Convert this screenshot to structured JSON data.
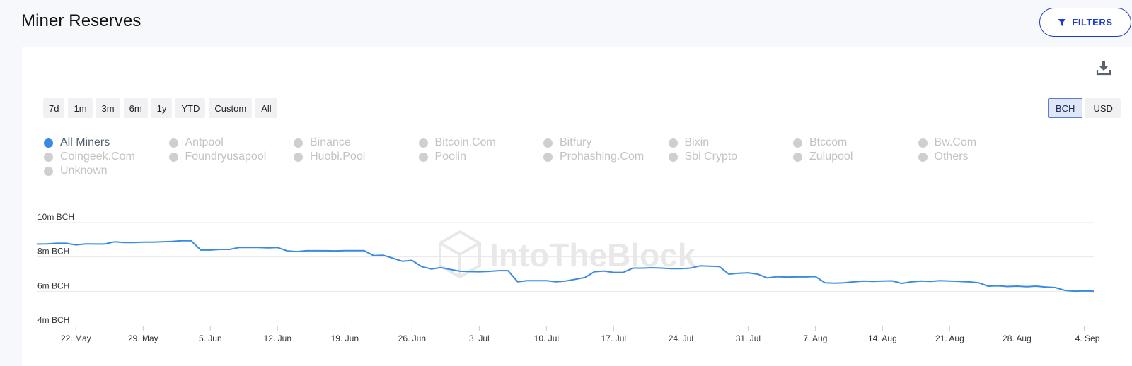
{
  "page": {
    "title": "Miner Reserves"
  },
  "toolbar": {
    "filters_label": "FILTERS"
  },
  "range_buttons": [
    "7d",
    "1m",
    "3m",
    "6m",
    "1y",
    "YTD",
    "Custom",
    "All"
  ],
  "unit_toggle": {
    "options": [
      "BCH",
      "USD"
    ],
    "selected": "BCH"
  },
  "legend": {
    "items": [
      {
        "label": "All Miners",
        "active": true
      },
      {
        "label": "Antpool",
        "active": false
      },
      {
        "label": "Binance",
        "active": false
      },
      {
        "label": "Bitcoin.Com",
        "active": false
      },
      {
        "label": "Bitfury",
        "active": false
      },
      {
        "label": "Bixin",
        "active": false
      },
      {
        "label": "Btccom",
        "active": false
      },
      {
        "label": "Bw.Com",
        "active": false
      },
      {
        "label": "Coingeek.Com",
        "active": false
      },
      {
        "label": "Foundryusapool",
        "active": false
      },
      {
        "label": "Huobi.Pool",
        "active": false
      },
      {
        "label": "Poolin",
        "active": false
      },
      {
        "label": "Prohashing.Com",
        "active": false
      },
      {
        "label": "Sbi Crypto",
        "active": false
      },
      {
        "label": "Zulupool",
        "active": false
      },
      {
        "label": "Others",
        "active": false
      },
      {
        "label": "Unknown",
        "active": false
      }
    ]
  },
  "watermark": "IntoTheBlock",
  "colors": {
    "line": "#3a8be0",
    "accent": "#1f3cc7",
    "inactive_legend": "#cfcfcf"
  },
  "icons": {
    "filter": "filter-icon",
    "download": "download-icon"
  },
  "chart_data": {
    "type": "line",
    "title": "",
    "xlabel": "",
    "ylabel": "",
    "y_unit": "m BCH",
    "ylim": [
      4,
      10
    ],
    "y_ticks": [
      {
        "value": 4,
        "label": "4m BCH"
      },
      {
        "value": 6,
        "label": "6m BCH"
      },
      {
        "value": 8,
        "label": "8m BCH"
      },
      {
        "value": 10,
        "label": "10m BCH"
      }
    ],
    "x_start": "2023-05-18",
    "x_end": "2023-09-05",
    "x_ticks": [
      {
        "date": "2023-05-22",
        "label": "22. May"
      },
      {
        "date": "2023-05-29",
        "label": "29. May"
      },
      {
        "date": "2023-06-05",
        "label": "5. Jun"
      },
      {
        "date": "2023-06-12",
        "label": "12. Jun"
      },
      {
        "date": "2023-06-19",
        "label": "19. Jun"
      },
      {
        "date": "2023-06-26",
        "label": "26. Jun"
      },
      {
        "date": "2023-07-03",
        "label": "3. Jul"
      },
      {
        "date": "2023-07-10",
        "label": "10. Jul"
      },
      {
        "date": "2023-07-17",
        "label": "17. Jul"
      },
      {
        "date": "2023-07-24",
        "label": "24. Jul"
      },
      {
        "date": "2023-07-31",
        "label": "31. Jul"
      },
      {
        "date": "2023-08-07",
        "label": "7. Aug"
      },
      {
        "date": "2023-08-14",
        "label": "14. Aug"
      },
      {
        "date": "2023-08-21",
        "label": "21. Aug"
      },
      {
        "date": "2023-08-28",
        "label": "28. Aug"
      },
      {
        "date": "2023-09-04",
        "label": "4. Sep"
      }
    ],
    "grid": true,
    "series": [
      {
        "name": "All Miners",
        "color": "#3a8be0",
        "points": [
          [
            "2023-05-18",
            8.75
          ],
          [
            "2023-05-19",
            8.76
          ],
          [
            "2023-05-20",
            8.79
          ],
          [
            "2023-05-21",
            8.79
          ],
          [
            "2023-05-22",
            8.7
          ],
          [
            "2023-05-23",
            8.76
          ],
          [
            "2023-05-24",
            8.75
          ],
          [
            "2023-05-25",
            8.75
          ],
          [
            "2023-05-26",
            8.88
          ],
          [
            "2023-05-27",
            8.84
          ],
          [
            "2023-05-28",
            8.84
          ],
          [
            "2023-05-29",
            8.86
          ],
          [
            "2023-05-30",
            8.86
          ],
          [
            "2023-05-31",
            8.88
          ],
          [
            "2023-06-01",
            8.9
          ],
          [
            "2023-06-02",
            8.94
          ],
          [
            "2023-06-03",
            8.94
          ],
          [
            "2023-06-04",
            8.4
          ],
          [
            "2023-06-05",
            8.4
          ],
          [
            "2023-06-06",
            8.44
          ],
          [
            "2023-06-07",
            8.44
          ],
          [
            "2023-06-08",
            8.55
          ],
          [
            "2023-06-09",
            8.55
          ],
          [
            "2023-06-10",
            8.55
          ],
          [
            "2023-06-11",
            8.53
          ],
          [
            "2023-06-12",
            8.55
          ],
          [
            "2023-06-13",
            8.35
          ],
          [
            "2023-06-14",
            8.31
          ],
          [
            "2023-06-15",
            8.36
          ],
          [
            "2023-06-16",
            8.36
          ],
          [
            "2023-06-17",
            8.36
          ],
          [
            "2023-06-18",
            8.35
          ],
          [
            "2023-06-19",
            8.37
          ],
          [
            "2023-06-20",
            8.37
          ],
          [
            "2023-06-21",
            8.37
          ],
          [
            "2023-06-22",
            8.08
          ],
          [
            "2023-06-23",
            8.1
          ],
          [
            "2023-06-24",
            7.93
          ],
          [
            "2023-06-25",
            7.75
          ],
          [
            "2023-06-26",
            7.8
          ],
          [
            "2023-06-27",
            7.44
          ],
          [
            "2023-06-28",
            7.3
          ],
          [
            "2023-06-29",
            7.38
          ],
          [
            "2023-06-30",
            7.27
          ],
          [
            "2023-07-01",
            7.17
          ],
          [
            "2023-07-02",
            7.15
          ],
          [
            "2023-07-03",
            7.14
          ],
          [
            "2023-07-04",
            7.16
          ],
          [
            "2023-07-05",
            7.2
          ],
          [
            "2023-07-06",
            7.2
          ],
          [
            "2023-07-07",
            6.56
          ],
          [
            "2023-07-08",
            6.62
          ],
          [
            "2023-07-09",
            6.62
          ],
          [
            "2023-07-10",
            6.62
          ],
          [
            "2023-07-11",
            6.56
          ],
          [
            "2023-07-12",
            6.6
          ],
          [
            "2023-07-13",
            6.7
          ],
          [
            "2023-07-14",
            6.8
          ],
          [
            "2023-07-15",
            7.14
          ],
          [
            "2023-07-16",
            7.18
          ],
          [
            "2023-07-17",
            7.1
          ],
          [
            "2023-07-18",
            7.1
          ],
          [
            "2023-07-19",
            7.35
          ],
          [
            "2023-07-20",
            7.35
          ],
          [
            "2023-07-21",
            7.37
          ],
          [
            "2023-07-22",
            7.35
          ],
          [
            "2023-07-23",
            7.32
          ],
          [
            "2023-07-24",
            7.32
          ],
          [
            "2023-07-25",
            7.35
          ],
          [
            "2023-07-26",
            7.48
          ],
          [
            "2023-07-27",
            7.46
          ],
          [
            "2023-07-28",
            7.44
          ],
          [
            "2023-07-29",
            7.0
          ],
          [
            "2023-07-30",
            7.05
          ],
          [
            "2023-07-31",
            7.08
          ],
          [
            "2023-08-01",
            7.0
          ],
          [
            "2023-08-02",
            6.78
          ],
          [
            "2023-08-03",
            6.85
          ],
          [
            "2023-08-04",
            6.83
          ],
          [
            "2023-08-05",
            6.84
          ],
          [
            "2023-08-06",
            6.84
          ],
          [
            "2023-08-07",
            6.86
          ],
          [
            "2023-08-08",
            6.5
          ],
          [
            "2023-08-09",
            6.48
          ],
          [
            "2023-08-10",
            6.5
          ],
          [
            "2023-08-11",
            6.55
          ],
          [
            "2023-08-12",
            6.6
          ],
          [
            "2023-08-13",
            6.58
          ],
          [
            "2023-08-14",
            6.6
          ],
          [
            "2023-08-15",
            6.61
          ],
          [
            "2023-08-16",
            6.46
          ],
          [
            "2023-08-17",
            6.55
          ],
          [
            "2023-08-18",
            6.6
          ],
          [
            "2023-08-19",
            6.58
          ],
          [
            "2023-08-20",
            6.62
          ],
          [
            "2023-08-21",
            6.6
          ],
          [
            "2023-08-22",
            6.58
          ],
          [
            "2023-08-23",
            6.55
          ],
          [
            "2023-08-24",
            6.5
          ],
          [
            "2023-08-25",
            6.3
          ],
          [
            "2023-08-26",
            6.32
          ],
          [
            "2023-08-27",
            6.28
          ],
          [
            "2023-08-28",
            6.3
          ],
          [
            "2023-08-29",
            6.27
          ],
          [
            "2023-08-30",
            6.3
          ],
          [
            "2023-08-31",
            6.25
          ],
          [
            "2023-09-01",
            6.22
          ],
          [
            "2023-09-02",
            6.05
          ],
          [
            "2023-09-03",
            6.01
          ],
          [
            "2023-09-04",
            6.02
          ],
          [
            "2023-09-05",
            6.01
          ]
        ]
      }
    ]
  }
}
